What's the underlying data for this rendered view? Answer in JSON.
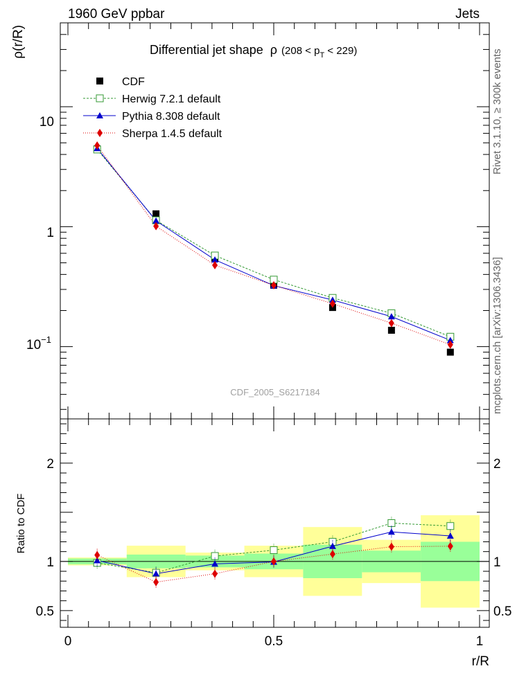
{
  "header": {
    "left": "1960 GeV ppbar",
    "right": "Jets"
  },
  "side_text": {
    "rivet": "Rivet 3.1.10, ≥ 300k events",
    "mcplots": "mcplots.cern.ch [arXiv:1306.3436]"
  },
  "watermark": "CDF_2005_S6217184",
  "chart_data": [
    {
      "type": "scatter",
      "panel": "main",
      "title": "Differential jet shape  ρ (208 < p_T < 229)",
      "title_parts": {
        "main": "Differential jet shape",
        "rho": "ρ",
        "range_open": "(208 < p",
        "range_sub": "T",
        "range_close": " < 229)"
      },
      "xlabel": "r/R",
      "ylabel": "ρ(r/R)",
      "xlim": [
        0,
        1
      ],
      "ylim": [
        0.025,
        50
      ],
      "yscale": "log",
      "yticks": [
        0.1,
        1,
        10
      ],
      "ytick_labels": {
        "one": "1",
        "ten": "10",
        "tenth_base": "10",
        "tenth_exp": "−1"
      },
      "legend_position": "top-left",
      "series": [
        {
          "name": "CDF",
          "color": "#000000",
          "marker": "square-filled",
          "x": [
            0.071,
            0.214,
            0.357,
            0.5,
            0.643,
            0.786,
            0.929
          ],
          "y": [
            4.45,
            1.28,
            0.545,
            0.325,
            0.212,
            0.137,
            0.09
          ]
        },
        {
          "name": "Herwig 7.2.1 default",
          "color": "#339933",
          "marker": "square-open",
          "line": "dashed",
          "x": [
            0.071,
            0.214,
            0.357,
            0.5,
            0.643,
            0.786,
            0.929
          ],
          "y": [
            4.4,
            1.13,
            0.575,
            0.362,
            0.255,
            0.19,
            0.121
          ]
        },
        {
          "name": "Pythia 8.308 default",
          "color": "#0000cc",
          "marker": "triangle-filled",
          "line": "solid",
          "x": [
            0.071,
            0.214,
            0.357,
            0.5,
            0.643,
            0.786,
            0.929
          ],
          "y": [
            4.5,
            1.12,
            0.53,
            0.323,
            0.245,
            0.178,
            0.113
          ]
        },
        {
          "name": "Sherpa 1.4.5 default",
          "color": "#dd0000",
          "marker": "diamond-filled",
          "line": "dotted",
          "x": [
            0.071,
            0.214,
            0.357,
            0.5,
            0.643,
            0.786,
            0.929
          ],
          "y": [
            4.75,
            1.01,
            0.478,
            0.325,
            0.228,
            0.157,
            0.104
          ]
        }
      ]
    },
    {
      "type": "scatter",
      "panel": "ratio",
      "xlabel": "r/R",
      "ylabel": "Ratio to CDF",
      "xlim": [
        0,
        1
      ],
      "ylim": [
        0.33,
        2.45
      ],
      "yticks": [
        0.5,
        1,
        1.5,
        2
      ],
      "ytick_labels": [
        "0.5",
        "1",
        "",
        "2"
      ],
      "xticks": [
        0,
        0.5,
        1
      ],
      "xtick_labels": [
        "0",
        "0.5",
        "1"
      ],
      "bins": [
        0,
        0.1428,
        0.2857,
        0.4286,
        0.5714,
        0.7143,
        0.8571,
        1.0
      ],
      "band_inner": {
        "color": "#99ff99",
        "lo": [
          0.97,
          0.93,
          0.94,
          0.92,
          0.83,
          0.89,
          0.8
        ],
        "hi": [
          1.03,
          1.07,
          1.06,
          1.08,
          1.17,
          1.11,
          1.2
        ]
      },
      "band_outer": {
        "color": "#ffff99",
        "lo": [
          0.96,
          0.84,
          0.91,
          0.84,
          0.65,
          0.78,
          0.53
        ],
        "hi": [
          1.04,
          1.16,
          1.09,
          1.16,
          1.35,
          1.22,
          1.47
        ]
      },
      "series": [
        {
          "name": "Herwig 7.2.1 default",
          "color": "#339933",
          "marker": "square-open",
          "line": "dashed",
          "x": [
            0.071,
            0.214,
            0.357,
            0.5,
            0.643,
            0.786,
            0.929
          ],
          "y": [
            0.985,
            0.885,
            1.055,
            1.115,
            1.2,
            1.39,
            1.36
          ]
        },
        {
          "name": "Pythia 8.308 default",
          "color": "#0000cc",
          "marker": "triangle-filled",
          "line": "solid",
          "x": [
            0.071,
            0.214,
            0.357,
            0.5,
            0.643,
            0.786,
            0.929
          ],
          "y": [
            1.01,
            0.875,
            0.975,
            0.995,
            1.155,
            1.3,
            1.26
          ]
        },
        {
          "name": "Sherpa 1.4.5 default",
          "color": "#dd0000",
          "marker": "diamond-filled",
          "line": "dotted",
          "x": [
            0.071,
            0.214,
            0.357,
            0.5,
            0.643,
            0.786,
            0.929
          ],
          "y": [
            1.065,
            0.79,
            0.875,
            1.0,
            1.075,
            1.15,
            1.155
          ]
        }
      ]
    }
  ]
}
